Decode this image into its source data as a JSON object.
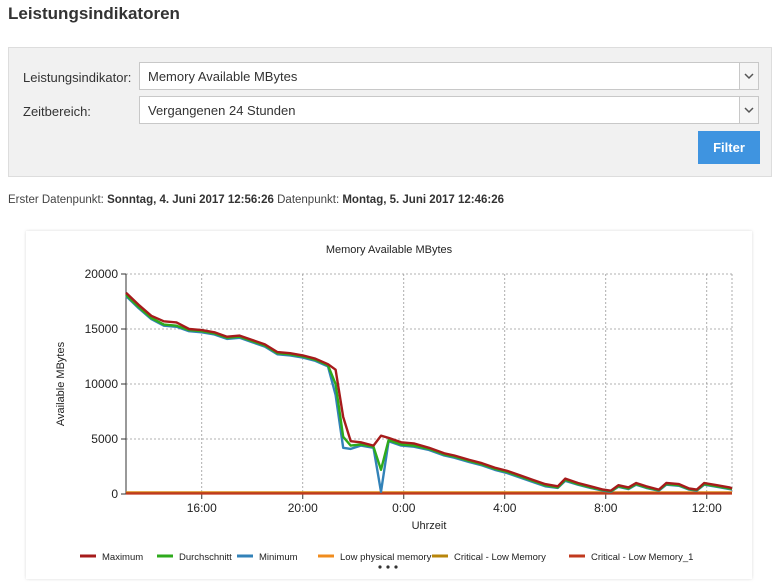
{
  "header": {
    "title": "Leistungsindikatoren"
  },
  "filter": {
    "indicator_label": "Leistungsindikator:",
    "indicator_value": "Memory Available MBytes",
    "range_label": "Zeitbereich:",
    "range_value": "Vergangenen 24 Stunden",
    "button_label": "Filter"
  },
  "datapoints": {
    "first_label": "Erster Datenpunkt:",
    "first_value": "Sonntag, 4. Juni 2017 12:56:26",
    "last_label": "Datenpunkt:",
    "last_value": "Montag, 5. Juni 2017 12:46:26"
  },
  "chart_data": {
    "type": "line",
    "title": "Memory  Available MBytes",
    "xlabel": "Uhrzeit",
    "ylabel": "Available MBytes",
    "ylim": [
      0,
      20000
    ],
    "xlim_hours": [
      13,
      37
    ],
    "xticks": [
      {
        "h": 16,
        "label": "16:00"
      },
      {
        "h": 20,
        "label": "20:00"
      },
      {
        "h": 24,
        "label": "0:00"
      },
      {
        "h": 28,
        "label": "4:00"
      },
      {
        "h": 32,
        "label": "8:00"
      },
      {
        "h": 36,
        "label": "12:00"
      }
    ],
    "yticks": [
      {
        "v": 0,
        "label": "0"
      },
      {
        "v": 5000,
        "label": "5000"
      },
      {
        "v": 10000,
        "label": "10000"
      },
      {
        "v": 15000,
        "label": "15000"
      },
      {
        "v": 20000,
        "label": "20000"
      }
    ],
    "grid": true,
    "legend_position": "bottom",
    "series": [
      {
        "name": "Maximum",
        "color": "#a61b1b",
        "points": [
          [
            13,
            18300
          ],
          [
            13.5,
            17200
          ],
          [
            14,
            16200
          ],
          [
            14.5,
            15700
          ],
          [
            15,
            15600
          ],
          [
            15.5,
            15000
          ],
          [
            16,
            14900
          ],
          [
            16.5,
            14700
          ],
          [
            17,
            14300
          ],
          [
            17.5,
            14400
          ],
          [
            18,
            14000
          ],
          [
            18.5,
            13600
          ],
          [
            19,
            12900
          ],
          [
            19.5,
            12800
          ],
          [
            20,
            12600
          ],
          [
            20.5,
            12300
          ],
          [
            21,
            11800
          ],
          [
            21.3,
            11300
          ],
          [
            21.6,
            7000
          ],
          [
            21.9,
            4800
          ],
          [
            22.3,
            4700
          ],
          [
            22.8,
            4400
          ],
          [
            23.1,
            5300
          ],
          [
            23.4,
            5100
          ],
          [
            23.9,
            4700
          ],
          [
            24.4,
            4600
          ],
          [
            25,
            4200
          ],
          [
            25.6,
            3700
          ],
          [
            26,
            3500
          ],
          [
            26.6,
            3100
          ],
          [
            27.1,
            2800
          ],
          [
            27.6,
            2400
          ],
          [
            28.1,
            2100
          ],
          [
            28.6,
            1700
          ],
          [
            29.1,
            1300
          ],
          [
            29.6,
            900
          ],
          [
            30.1,
            700
          ],
          [
            30.4,
            1400
          ],
          [
            30.9,
            1000
          ],
          [
            31.4,
            700
          ],
          [
            31.9,
            400
          ],
          [
            32.2,
            300
          ],
          [
            32.5,
            800
          ],
          [
            32.9,
            600
          ],
          [
            33.2,
            1000
          ],
          [
            33.6,
            700
          ],
          [
            34.1,
            400
          ],
          [
            34.4,
            1000
          ],
          [
            34.9,
            900
          ],
          [
            35.3,
            500
          ],
          [
            35.6,
            400
          ],
          [
            35.9,
            1000
          ],
          [
            36.4,
            800
          ],
          [
            36.9,
            600
          ],
          [
            37,
            500
          ]
        ]
      },
      {
        "name": "Durchschnitt",
        "color": "#2eaa1c",
        "points": [
          [
            13,
            18100
          ],
          [
            13.5,
            17000
          ],
          [
            14,
            16000
          ],
          [
            14.5,
            15400
          ],
          [
            15,
            15300
          ],
          [
            15.5,
            14900
          ],
          [
            16,
            14800
          ],
          [
            16.5,
            14600
          ],
          [
            17,
            14200
          ],
          [
            17.5,
            14300
          ],
          [
            18,
            13900
          ],
          [
            18.5,
            13500
          ],
          [
            19,
            12800
          ],
          [
            19.5,
            12700
          ],
          [
            20,
            12500
          ],
          [
            20.5,
            12200
          ],
          [
            21,
            11700
          ],
          [
            21.3,
            10000
          ],
          [
            21.6,
            5200
          ],
          [
            21.9,
            4400
          ],
          [
            22.3,
            4500
          ],
          [
            22.8,
            4300
          ],
          [
            23.1,
            2200
          ],
          [
            23.4,
            4900
          ],
          [
            23.9,
            4500
          ],
          [
            24.4,
            4400
          ],
          [
            25,
            4100
          ],
          [
            25.6,
            3600
          ],
          [
            26,
            3400
          ],
          [
            26.6,
            3000
          ],
          [
            27.1,
            2700
          ],
          [
            27.6,
            2300
          ],
          [
            28.1,
            2000
          ],
          [
            28.6,
            1600
          ],
          [
            29.1,
            1200
          ],
          [
            29.6,
            800
          ],
          [
            30.1,
            600
          ],
          [
            30.4,
            1300
          ],
          [
            30.9,
            900
          ],
          [
            31.4,
            600
          ],
          [
            31.9,
            350
          ],
          [
            32.2,
            250
          ],
          [
            32.5,
            700
          ],
          [
            32.9,
            500
          ],
          [
            33.2,
            900
          ],
          [
            33.6,
            600
          ],
          [
            34.1,
            350
          ],
          [
            34.4,
            900
          ],
          [
            34.9,
            800
          ],
          [
            35.3,
            450
          ],
          [
            35.6,
            350
          ],
          [
            35.9,
            900
          ],
          [
            36.4,
            700
          ],
          [
            36.9,
            500
          ],
          [
            37,
            450
          ]
        ]
      },
      {
        "name": "Minimum",
        "color": "#3282b8",
        "points": [
          [
            13,
            18000
          ],
          [
            13.5,
            16900
          ],
          [
            14,
            15900
          ],
          [
            14.5,
            15300
          ],
          [
            15,
            15200
          ],
          [
            15.5,
            14800
          ],
          [
            16,
            14700
          ],
          [
            16.5,
            14500
          ],
          [
            17,
            14100
          ],
          [
            17.5,
            14200
          ],
          [
            18,
            13800
          ],
          [
            18.5,
            13400
          ],
          [
            19,
            12700
          ],
          [
            19.5,
            12600
          ],
          [
            20,
            12400
          ],
          [
            20.5,
            12100
          ],
          [
            21,
            11600
          ],
          [
            21.3,
            9000
          ],
          [
            21.6,
            4200
          ],
          [
            21.9,
            4100
          ],
          [
            22.3,
            4400
          ],
          [
            22.8,
            4200
          ],
          [
            23.1,
            200
          ],
          [
            23.4,
            4800
          ],
          [
            23.9,
            4400
          ],
          [
            24.4,
            4300
          ],
          [
            25,
            4000
          ],
          [
            25.6,
            3500
          ],
          [
            26,
            3300
          ],
          [
            26.6,
            2900
          ],
          [
            27.1,
            2600
          ],
          [
            27.6,
            2200
          ],
          [
            28.1,
            1900
          ],
          [
            28.6,
            1500
          ],
          [
            29.1,
            1100
          ],
          [
            29.6,
            700
          ],
          [
            30.1,
            550
          ],
          [
            30.4,
            1200
          ],
          [
            30.9,
            850
          ],
          [
            31.4,
            550
          ],
          [
            31.9,
            300
          ],
          [
            32.2,
            200
          ],
          [
            32.5,
            650
          ],
          [
            32.9,
            450
          ],
          [
            33.2,
            850
          ],
          [
            33.6,
            550
          ],
          [
            34.1,
            300
          ],
          [
            34.4,
            850
          ],
          [
            34.9,
            750
          ],
          [
            35.3,
            400
          ],
          [
            35.6,
            300
          ],
          [
            35.9,
            850
          ],
          [
            36.4,
            650
          ],
          [
            36.9,
            450
          ],
          [
            37,
            400
          ]
        ]
      },
      {
        "name": "Low physical memory",
        "color": "#f08c1e",
        "points": [
          [
            13,
            150
          ],
          [
            37,
            150
          ]
        ]
      },
      {
        "name": "Critical - Low Memory",
        "color": "#b8860b",
        "points": [
          [
            13,
            100
          ],
          [
            37,
            100
          ]
        ]
      },
      {
        "name": "Critical - Low Memory_1",
        "color": "#c1391e",
        "points": [
          [
            13,
            50
          ],
          [
            37,
            50
          ]
        ]
      }
    ]
  }
}
